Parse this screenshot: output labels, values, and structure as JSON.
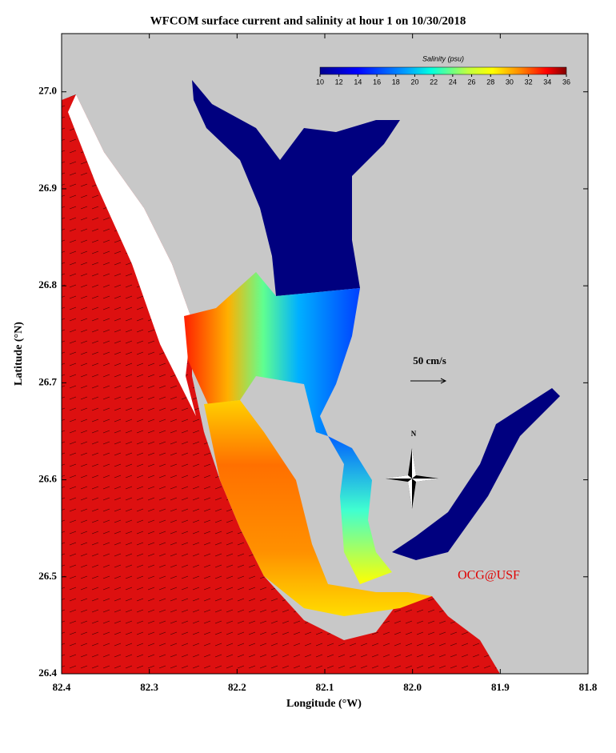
{
  "title": "WFCOM surface current and salinity at hour 1 on 10/30/2018",
  "x_axis": {
    "label": "Longitude (°W)",
    "lim": [
      82.4,
      81.8
    ],
    "ticks": [
      82.4,
      82.3,
      82.2,
      82.1,
      {
        "value": 82,
        "label": "82.0"
      },
      81.9,
      81.8
    ]
  },
  "y_axis": {
    "label": "Latitude (°N)",
    "lim": [
      26.4,
      27.06
    ],
    "ticks": [
      26.4,
      26.5,
      26.6,
      26.7,
      26.8,
      26.9,
      {
        "value": 27,
        "label": "27.0"
      }
    ]
  },
  "colorbar": {
    "title": "Salinity (psu)",
    "lim": [
      10,
      36
    ],
    "ticks": [
      10,
      12,
      14,
      16,
      18,
      20,
      22,
      24,
      26,
      28,
      30,
      32,
      34,
      36
    ]
  },
  "scale_label": "50 cm/s",
  "north_label": "N",
  "credit": "OCG@USF"
}
